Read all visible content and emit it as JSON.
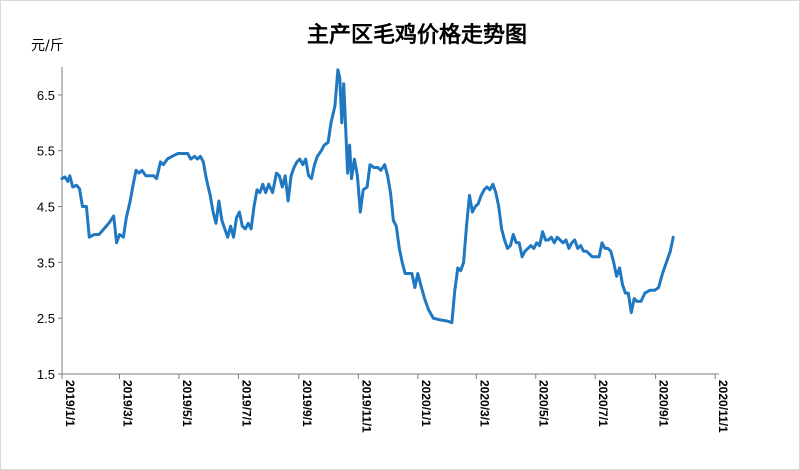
{
  "chart_data": {
    "type": "line",
    "title": "主产区毛鸡价格走势图",
    "ylabel": "元/斤",
    "xlabel": "",
    "ylim": [
      1.5,
      7.0
    ],
    "yticks": [
      "1.5",
      "2.5",
      "3.5",
      "4.5",
      "5.5",
      "6.5"
    ],
    "ytick_values": [
      1.5,
      2.5,
      3.5,
      4.5,
      5.5,
      6.5
    ],
    "xticks": [
      "2019/1/1",
      "2019/3/1",
      "2019/5/1",
      "2019/7/1",
      "2019/9/1",
      "2019/11/1",
      "2020/1/1",
      "2020/3/1",
      "2020/5/1",
      "2020/7/1",
      "2020/9/1",
      "2020/11/1"
    ],
    "xlim": [
      "2019-01-01",
      "2020-11-05"
    ],
    "grid": false,
    "legend": "none",
    "series": [
      {
        "color": "#1f78c1",
        "points": [
          [
            "2019-01-01",
            5.0
          ],
          [
            "2019-01-04",
            5.03
          ],
          [
            "2019-01-07",
            4.95
          ],
          [
            "2019-01-09",
            5.05
          ],
          [
            "2019-01-12",
            4.85
          ],
          [
            "2019-01-16",
            4.88
          ],
          [
            "2019-01-19",
            4.82
          ],
          [
            "2019-01-22",
            4.5
          ],
          [
            "2019-01-26",
            4.5
          ],
          [
            "2019-01-29",
            3.95
          ],
          [
            "2019-02-03",
            4.0
          ],
          [
            "2019-02-08",
            4.0
          ],
          [
            "2019-02-13",
            4.1
          ],
          [
            "2019-02-18",
            4.2
          ],
          [
            "2019-02-23",
            4.33
          ],
          [
            "2019-02-26",
            3.85
          ],
          [
            "2019-03-01",
            4.0
          ],
          [
            "2019-03-05",
            3.95
          ],
          [
            "2019-03-08",
            4.3
          ],
          [
            "2019-03-12",
            4.6
          ],
          [
            "2019-03-15",
            4.9
          ],
          [
            "2019-03-18",
            5.15
          ],
          [
            "2019-03-21",
            5.1
          ],
          [
            "2019-03-24",
            5.15
          ],
          [
            "2019-03-28",
            5.05
          ],
          [
            "2019-04-05",
            5.05
          ],
          [
            "2019-04-08",
            5.0
          ],
          [
            "2019-04-12",
            5.3
          ],
          [
            "2019-04-15",
            5.25
          ],
          [
            "2019-04-19",
            5.35
          ],
          [
            "2019-04-24",
            5.4
          ],
          [
            "2019-04-30",
            5.45
          ],
          [
            "2019-05-05",
            5.45
          ],
          [
            "2019-05-10",
            5.45
          ],
          [
            "2019-05-13",
            5.35
          ],
          [
            "2019-05-17",
            5.4
          ],
          [
            "2019-05-20",
            5.35
          ],
          [
            "2019-05-23",
            5.4
          ],
          [
            "2019-05-26",
            5.3
          ],
          [
            "2019-05-29",
            5.0
          ],
          [
            "2019-06-02",
            4.7
          ],
          [
            "2019-06-05",
            4.4
          ],
          [
            "2019-06-08",
            4.2
          ],
          [
            "2019-06-11",
            4.6
          ],
          [
            "2019-06-14",
            4.25
          ],
          [
            "2019-06-17",
            4.1
          ],
          [
            "2019-06-20",
            3.95
          ],
          [
            "2019-06-23",
            4.15
          ],
          [
            "2019-06-26",
            3.95
          ],
          [
            "2019-06-29",
            4.3
          ],
          [
            "2019-07-02",
            4.4
          ],
          [
            "2019-07-05",
            4.15
          ],
          [
            "2019-07-08",
            4.1
          ],
          [
            "2019-07-11",
            4.2
          ],
          [
            "2019-07-14",
            4.1
          ],
          [
            "2019-07-17",
            4.5
          ],
          [
            "2019-07-20",
            4.8
          ],
          [
            "2019-07-23",
            4.75
          ],
          [
            "2019-07-26",
            4.9
          ],
          [
            "2019-07-29",
            4.75
          ],
          [
            "2019-08-01",
            4.9
          ],
          [
            "2019-08-05",
            4.75
          ],
          [
            "2019-08-09",
            5.1
          ],
          [
            "2019-08-12",
            5.05
          ],
          [
            "2019-08-15",
            4.85
          ],
          [
            "2019-08-18",
            5.05
          ],
          [
            "2019-08-21",
            4.6
          ],
          [
            "2019-08-24",
            5.05
          ],
          [
            "2019-08-27",
            5.2
          ],
          [
            "2019-08-30",
            5.3
          ],
          [
            "2019-09-02",
            5.35
          ],
          [
            "2019-09-05",
            5.25
          ],
          [
            "2019-09-08",
            5.35
          ],
          [
            "2019-09-11",
            5.05
          ],
          [
            "2019-09-14",
            5.0
          ],
          [
            "2019-09-17",
            5.25
          ],
          [
            "2019-09-20",
            5.4
          ],
          [
            "2019-09-24",
            5.5
          ],
          [
            "2019-09-27",
            5.6
          ],
          [
            "2019-10-01",
            5.65
          ],
          [
            "2019-10-04",
            6.0
          ],
          [
            "2019-10-08",
            6.3
          ],
          [
            "2019-10-11",
            6.95
          ],
          [
            "2019-10-13",
            6.8
          ],
          [
            "2019-10-15",
            6.0
          ],
          [
            "2019-10-17",
            6.7
          ],
          [
            "2019-10-19",
            5.9
          ],
          [
            "2019-10-21",
            5.1
          ],
          [
            "2019-10-23",
            5.6
          ],
          [
            "2019-10-25",
            5.0
          ],
          [
            "2019-10-28",
            5.35
          ],
          [
            "2019-10-31",
            5.05
          ],
          [
            "2019-11-03",
            4.4
          ],
          [
            "2019-11-06",
            4.8
          ],
          [
            "2019-11-10",
            4.85
          ],
          [
            "2019-11-13",
            5.25
          ],
          [
            "2019-11-17",
            5.2
          ],
          [
            "2019-11-21",
            5.2
          ],
          [
            "2019-11-24",
            5.15
          ],
          [
            "2019-11-28",
            5.25
          ],
          [
            "2019-12-01",
            5.05
          ],
          [
            "2019-12-04",
            4.75
          ],
          [
            "2019-12-07",
            4.25
          ],
          [
            "2019-12-10",
            4.15
          ],
          [
            "2019-12-13",
            3.75
          ],
          [
            "2019-12-16",
            3.5
          ],
          [
            "2019-12-19",
            3.3
          ],
          [
            "2019-12-22",
            3.3
          ],
          [
            "2019-12-26",
            3.3
          ],
          [
            "2019-12-29",
            3.05
          ],
          [
            "2020-01-01",
            3.3
          ],
          [
            "2020-01-04",
            3.1
          ],
          [
            "2020-01-08",
            2.85
          ],
          [
            "2020-01-12",
            2.65
          ],
          [
            "2020-01-17",
            2.5
          ],
          [
            "2020-01-24",
            2.47
          ],
          [
            "2020-01-31",
            2.45
          ],
          [
            "2020-02-05",
            2.42
          ],
          [
            "2020-02-08",
            3.0
          ],
          [
            "2020-02-11",
            3.4
          ],
          [
            "2020-02-14",
            3.35
          ],
          [
            "2020-02-17",
            3.5
          ],
          [
            "2020-02-20",
            4.15
          ],
          [
            "2020-02-23",
            4.7
          ],
          [
            "2020-02-26",
            4.4
          ],
          [
            "2020-02-29",
            4.5
          ],
          [
            "2020-03-03",
            4.55
          ],
          [
            "2020-03-06",
            4.7
          ],
          [
            "2020-03-09",
            4.8
          ],
          [
            "2020-03-12",
            4.85
          ],
          [
            "2020-03-15",
            4.8
          ],
          [
            "2020-03-18",
            4.9
          ],
          [
            "2020-03-21",
            4.75
          ],
          [
            "2020-03-24",
            4.5
          ],
          [
            "2020-03-27",
            4.1
          ],
          [
            "2020-03-30",
            3.9
          ],
          [
            "2020-04-02",
            3.75
          ],
          [
            "2020-04-05",
            3.8
          ],
          [
            "2020-04-08",
            4.0
          ],
          [
            "2020-04-11",
            3.85
          ],
          [
            "2020-04-14",
            3.85
          ],
          [
            "2020-04-17",
            3.6
          ],
          [
            "2020-04-20",
            3.7
          ],
          [
            "2020-04-23",
            3.75
          ],
          [
            "2020-04-26",
            3.8
          ],
          [
            "2020-04-29",
            3.75
          ],
          [
            "2020-05-02",
            3.85
          ],
          [
            "2020-05-05",
            3.8
          ],
          [
            "2020-05-08",
            4.05
          ],
          [
            "2020-05-11",
            3.9
          ],
          [
            "2020-05-14",
            3.9
          ],
          [
            "2020-05-17",
            3.95
          ],
          [
            "2020-05-20",
            3.85
          ],
          [
            "2020-05-23",
            3.95
          ],
          [
            "2020-05-26",
            3.9
          ],
          [
            "2020-05-29",
            3.85
          ],
          [
            "2020-06-01",
            3.9
          ],
          [
            "2020-06-04",
            3.75
          ],
          [
            "2020-06-07",
            3.85
          ],
          [
            "2020-06-10",
            3.9
          ],
          [
            "2020-06-13",
            3.75
          ],
          [
            "2020-06-16",
            3.8
          ],
          [
            "2020-06-19",
            3.7
          ],
          [
            "2020-06-22",
            3.7
          ],
          [
            "2020-06-25",
            3.65
          ],
          [
            "2020-06-28",
            3.6
          ],
          [
            "2020-07-02",
            3.6
          ],
          [
            "2020-07-05",
            3.6
          ],
          [
            "2020-07-08",
            3.85
          ],
          [
            "2020-07-11",
            3.75
          ],
          [
            "2020-07-14",
            3.75
          ],
          [
            "2020-07-17",
            3.7
          ],
          [
            "2020-07-20",
            3.5
          ],
          [
            "2020-07-23",
            3.25
          ],
          [
            "2020-07-26",
            3.4
          ],
          [
            "2020-07-29",
            3.1
          ],
          [
            "2020-08-01",
            2.95
          ],
          [
            "2020-08-04",
            2.95
          ],
          [
            "2020-08-07",
            2.6
          ],
          [
            "2020-08-10",
            2.85
          ],
          [
            "2020-08-13",
            2.8
          ],
          [
            "2020-08-17",
            2.8
          ],
          [
            "2020-08-21",
            2.95
          ],
          [
            "2020-08-26",
            3.0
          ],
          [
            "2020-08-31",
            3.0
          ],
          [
            "2020-09-04",
            3.05
          ],
          [
            "2020-09-08",
            3.3
          ],
          [
            "2020-09-12",
            3.5
          ],
          [
            "2020-09-16",
            3.7
          ],
          [
            "2020-09-19",
            3.95
          ]
        ]
      }
    ]
  }
}
